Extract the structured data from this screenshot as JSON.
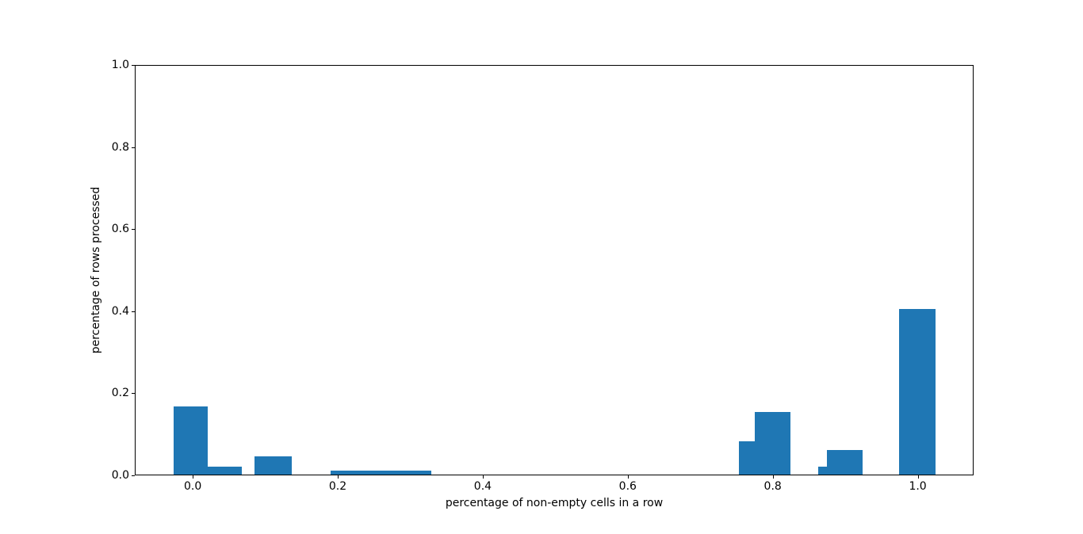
{
  "figure": {
    "background": "#ffffff"
  },
  "chart_data": {
    "type": "bar",
    "title": "",
    "xlabel": "percentage of non-empty cells in a row",
    "ylabel": "percentage of rows processed",
    "xlim": [
      -0.08,
      1.077
    ],
    "ylim": [
      0,
      1.0
    ],
    "grid": false,
    "bar_color": "#1f77b4",
    "xticks": {
      "values": [
        0.0,
        0.2,
        0.4,
        0.6,
        0.8,
        1.0
      ],
      "labels": [
        "0.0",
        "0.2",
        "0.4",
        "0.6",
        "0.8",
        "1.0"
      ]
    },
    "yticks": {
      "values": [
        0.0,
        0.2,
        0.4,
        0.6,
        0.8,
        1.0
      ],
      "labels": [
        "0.0",
        "0.2",
        "0.4",
        "0.6",
        "0.8",
        "1.0"
      ]
    },
    "bars": [
      {
        "x0": -0.026,
        "x1": 0.021,
        "height": 0.167
      },
      {
        "x0": 0.021,
        "x1": 0.068,
        "height": 0.022
      },
      {
        "x0": 0.085,
        "x1": 0.137,
        "height": 0.047
      },
      {
        "x0": 0.19,
        "x1": 0.329,
        "height": 0.011
      },
      {
        "x0": 0.753,
        "x1": 0.775,
        "height": 0.083
      },
      {
        "x0": 0.775,
        "x1": 0.824,
        "height": 0.154
      },
      {
        "x0": 0.863,
        "x1": 0.875,
        "height": 0.022
      },
      {
        "x0": 0.875,
        "x1": 0.924,
        "height": 0.061
      },
      {
        "x0": 0.974,
        "x1": 1.025,
        "height": 0.405
      }
    ]
  }
}
